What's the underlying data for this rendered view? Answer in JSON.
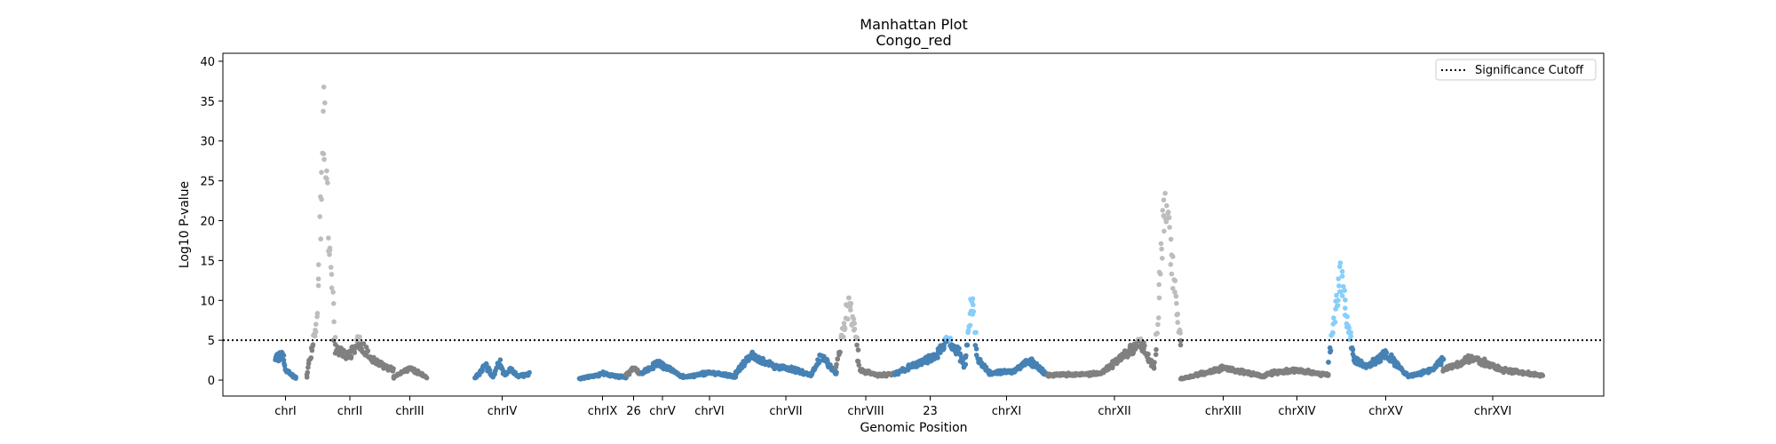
{
  "chart_data": {
    "type": "scatter",
    "title": "Manhattan Plot",
    "subtitle": "Congo_red",
    "xlabel": "Genomic Position",
    "ylabel": "Log10 P-value",
    "ylim": [
      -2,
      41
    ],
    "yticks": [
      0,
      5,
      10,
      15,
      20,
      25,
      30,
      35,
      40
    ],
    "grid": false,
    "legend": {
      "position": "top-right",
      "entries": [
        "Significance Cutoff"
      ]
    },
    "cutoff": 5,
    "colors": {
      "blue": "#4682b4",
      "gray": "#808080",
      "light_gray": "#bdbdbd",
      "light_blue": "#87cefa",
      "cutoff_line": "#000000"
    },
    "chromosomes": [
      {
        "label": "chrI",
        "color": "blue",
        "hi": "light_blue",
        "segments": [
          [
            0,
            2.8
          ],
          [
            0.35,
            3.8
          ],
          [
            0.5,
            1.5
          ],
          [
            1.0,
            0.4
          ]
        ]
      },
      {
        "label": "chrII",
        "color": "gray",
        "hi": "light_gray",
        "segments": [
          [
            0,
            0.5
          ],
          [
            0.12,
            8
          ],
          [
            0.2,
            39
          ],
          [
            0.26,
            20
          ],
          [
            0.33,
            4.5
          ],
          [
            0.5,
            3.5
          ],
          [
            0.6,
            5.5
          ],
          [
            0.75,
            3.0
          ],
          [
            1.0,
            1.5
          ]
        ]
      },
      {
        "label": "chrIII",
        "color": "gray",
        "hi": "light_gray",
        "segments": [
          [
            0,
            0.5
          ],
          [
            0.5,
            1.8
          ],
          [
            1.0,
            0.6
          ]
        ]
      },
      {
        "label": "chrIV",
        "color": "blue",
        "hi": "light_blue",
        "segments": [
          [
            0,
            0.4
          ],
          [
            0.2,
            2.3
          ],
          [
            0.32,
            0.5
          ],
          [
            0.45,
            2.5
          ],
          [
            0.55,
            0.8
          ],
          [
            0.65,
            1.6
          ],
          [
            0.8,
            0.6
          ],
          [
            1.0,
            1.0
          ]
        ]
      },
      {
        "label": "chrIX",
        "color": "blue",
        "hi": "light_blue",
        "segments": [
          [
            0,
            0.3
          ],
          [
            0.5,
            1.0
          ],
          [
            1.0,
            0.5
          ]
        ]
      },
      {
        "label": "26",
        "color": "gray",
        "hi": "light_gray",
        "segments": [
          [
            0,
            0.8
          ],
          [
            0.5,
            1.8
          ],
          [
            1.0,
            1.0
          ]
        ]
      },
      {
        "label": "chrV",
        "color": "blue",
        "hi": "light_blue",
        "segments": [
          [
            0,
            1.0
          ],
          [
            0.4,
            2.5
          ],
          [
            0.7,
            1.5
          ],
          [
            1.0,
            0.5
          ]
        ]
      },
      {
        "label": "chrVI",
        "color": "blue",
        "hi": "light_blue",
        "segments": [
          [
            0,
            0.5
          ],
          [
            0.5,
            1.2
          ],
          [
            1.0,
            0.6
          ]
        ]
      },
      {
        "label": "chrVII",
        "color": "blue",
        "hi": "light_blue",
        "segments": [
          [
            0,
            1.0
          ],
          [
            0.15,
            3.5
          ],
          [
            0.4,
            2.0
          ],
          [
            0.6,
            1.5
          ],
          [
            0.75,
            0.8
          ],
          [
            0.85,
            3.5
          ],
          [
            1.0,
            1.0
          ]
        ]
      },
      {
        "label": "chrVIII",
        "color": "gray",
        "hi": "light_gray",
        "segments": [
          [
            0,
            2.0
          ],
          [
            0.2,
            10.5
          ],
          [
            0.3,
            8.0
          ],
          [
            0.4,
            1.5
          ],
          [
            0.7,
            0.8
          ],
          [
            1.0,
            1.0
          ]
        ]
      },
      {
        "label": "23",
        "color": "blue",
        "hi": "light_blue",
        "segments": [
          [
            0,
            1.0
          ],
          [
            0.35,
            2.5
          ],
          [
            0.6,
            3.5
          ],
          [
            0.75,
            6.0
          ],
          [
            0.9,
            4.0
          ],
          [
            1.0,
            2.0
          ]
        ]
      },
      {
        "label": "chrXI",
        "color": "blue",
        "hi": "light_blue",
        "segments": [
          [
            0,
            2.0
          ],
          [
            0.08,
            12
          ],
          [
            0.15,
            3.0
          ],
          [
            0.3,
            1.0
          ],
          [
            0.6,
            1.5
          ],
          [
            0.78,
            2.8
          ],
          [
            1.0,
            0.8
          ]
        ]
      },
      {
        "label": "chrXII",
        "color": "gray",
        "hi": "light_gray",
        "segments": [
          [
            0,
            0.8
          ],
          [
            0.4,
            1.0
          ],
          [
            0.6,
            4.0
          ],
          [
            0.7,
            5.5
          ],
          [
            0.8,
            1.5
          ],
          [
            0.88,
            26
          ],
          [
            0.96,
            12
          ],
          [
            1.0,
            4.5
          ]
        ]
      },
      {
        "label": "chrXIII",
        "color": "gray",
        "hi": "light_gray",
        "segments": [
          [
            0,
            0.3
          ],
          [
            0.5,
            1.8
          ],
          [
            1.0,
            0.6
          ]
        ]
      },
      {
        "label": "chrXIV",
        "color": "gray",
        "hi": "light_gray",
        "segments": [
          [
            0,
            1.0
          ],
          [
            0.5,
            1.5
          ],
          [
            1.0,
            0.8
          ]
        ]
      },
      {
        "label": "chrXV",
        "color": "blue",
        "hi": "light_blue",
        "segments": [
          [
            0,
            2.5
          ],
          [
            0.1,
            15
          ],
          [
            0.22,
            3.0
          ],
          [
            0.35,
            2.0
          ],
          [
            0.5,
            3.8
          ],
          [
            0.7,
            0.6
          ],
          [
            0.9,
            1.5
          ],
          [
            1.0,
            3.0
          ]
        ]
      },
      {
        "label": "chrXVI",
        "color": "gray",
        "hi": "light_gray",
        "segments": [
          [
            0,
            1.5
          ],
          [
            0.3,
            3.2
          ],
          [
            0.6,
            1.5
          ],
          [
            1.0,
            0.8
          ]
        ]
      }
    ]
  }
}
